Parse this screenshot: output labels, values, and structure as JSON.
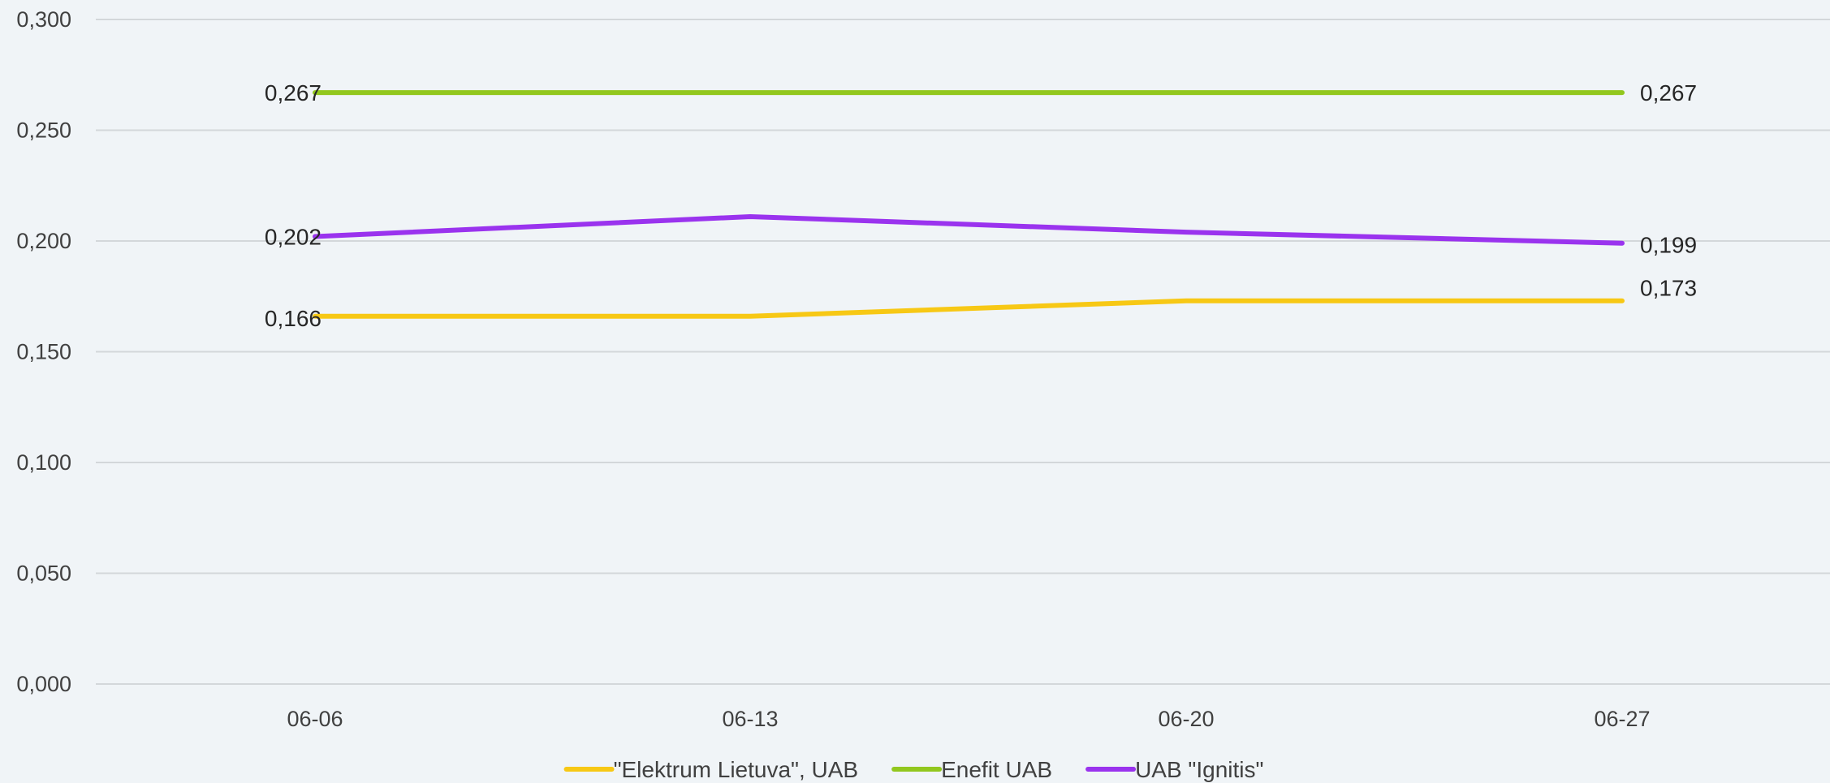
{
  "chart_data": {
    "type": "line",
    "title": "",
    "xlabel": "",
    "ylabel": "",
    "categories": [
      "06-06",
      "06-13",
      "06-20",
      "06-27"
    ],
    "ylim": [
      0,
      0.3
    ],
    "ytick_values": [
      0,
      0.05,
      0.1,
      0.15,
      0.2,
      0.25,
      0.3
    ],
    "ytick_labels": [
      "0,000",
      "0,050",
      "0,100",
      "0,150",
      "0,200",
      "0,250",
      "0,300"
    ],
    "grid": true,
    "legend_position": "bottom",
    "series": [
      {
        "name": "\"Elektrum Lietuva\", UAB",
        "color": "#f7c815",
        "values": [
          0.166,
          0.166,
          0.173,
          0.173
        ],
        "labels": [
          "0,166",
          "",
          "",
          "0,173"
        ]
      },
      {
        "name": "Enefit UAB",
        "color": "#92c71e",
        "values": [
          0.267,
          0.267,
          0.267,
          0.267
        ],
        "labels": [
          "0,267",
          "",
          "",
          "0,267"
        ]
      },
      {
        "name": "UAB \"Ignitis\"",
        "color": "#9a33ee",
        "values": [
          0.202,
          0.211,
          0.204,
          0.199
        ],
        "labels": [
          "0,202",
          "",
          "",
          "0,199"
        ]
      }
    ]
  }
}
